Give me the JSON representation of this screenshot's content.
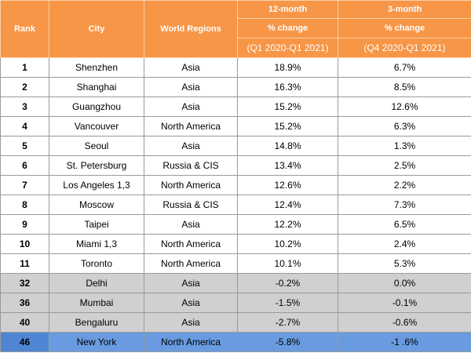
{
  "table": {
    "headers": {
      "rank": "Rank",
      "city": "City",
      "region": "World Regions",
      "m12": [
        "12-month",
        "% change",
        "(Q1 2020-Q1 2021)"
      ],
      "m3": [
        "3-month",
        "% change",
        "(Q4 2020-Q1 2021)"
      ]
    },
    "rows": [
      [
        "1",
        "Shenzhen",
        "Asia",
        "18.9%",
        "6.7%"
      ],
      [
        "2",
        "Shanghai",
        "Asia",
        "16.3%",
        "8.5%"
      ],
      [
        "3",
        "Guangzhou",
        "Asia",
        "15.2%",
        "12.6%"
      ],
      [
        "4",
        "Vancouver",
        "North America",
        "15.2%",
        "6.3%"
      ],
      [
        "5",
        "Seoul",
        "Asia",
        "14.8%",
        "1.3%"
      ],
      [
        "6",
        "St. Petersburg",
        "Russia & CIS",
        "13.4%",
        "2.5%"
      ],
      [
        "7",
        "Los Angeles 1,3",
        "North America",
        "12.6%",
        "2.2%"
      ],
      [
        "8",
        "Moscow",
        "Russia & CIS",
        "12.4%",
        "7.3%"
      ],
      [
        "9",
        "Taipei",
        "Asia",
        "12.2%",
        "6.5%"
      ],
      [
        "10",
        "Miami 1,3",
        "North America",
        "10.2%",
        "2.4%"
      ],
      [
        "11",
        "Toronto",
        "North America",
        "10.1%",
        "5.3%"
      ],
      [
        "32",
        "Delhi",
        "Asia",
        "-0.2%",
        "0.0%"
      ],
      [
        "36",
        "Mumbai",
        "Asia",
        "-1.5%",
        "-0.1%"
      ],
      [
        "40",
        "Bengaluru",
        "Asia",
        "-2.7%",
        "-0.6%"
      ],
      [
        "46",
        "New York",
        "North America",
        "-5.8%",
        "-1 .6%"
      ]
    ]
  }
}
